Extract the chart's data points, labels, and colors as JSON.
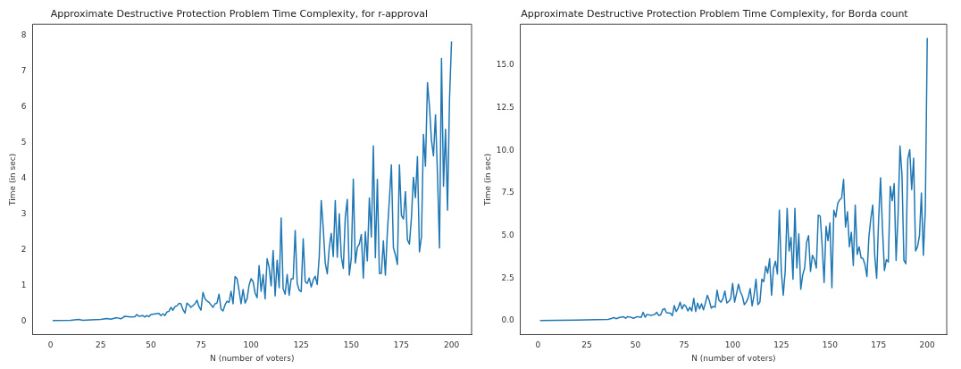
{
  "chart_data": [
    {
      "type": "line",
      "title": "Approximate Destructive Protection Problem Time Complexity, for r-approval",
      "xlabel": "N (number of voters)",
      "ylabel": "Time (in sec)",
      "xlim": [
        -9,
        210
      ],
      "ylim": [
        -0.38,
        8.3
      ],
      "xticks": [
        0,
        25,
        50,
        75,
        100,
        125,
        150,
        175,
        200
      ],
      "yticks": [
        0,
        1,
        2,
        3,
        4,
        5,
        6,
        7,
        8
      ],
      "grid": false,
      "legend": false,
      "marker": "none",
      "line_style": "solid",
      "series": [
        {
          "color": "#1f77b4",
          "x": [
            1,
            10,
            14,
            16,
            20,
            25,
            28,
            30,
            33,
            35,
            37,
            40,
            42,
            43,
            44,
            46,
            47,
            48,
            49,
            50,
            54,
            55,
            56,
            57,
            58,
            59,
            60,
            61,
            62,
            63,
            64,
            65,
            66,
            67,
            68,
            69,
            70,
            72,
            73,
            74,
            75,
            76,
            77,
            78,
            79,
            81,
            82,
            83,
            84,
            85,
            86,
            87,
            88,
            89,
            90,
            91,
            92,
            93,
            94,
            95,
            96,
            97,
            98,
            99,
            100,
            101,
            102,
            103,
            104,
            105,
            106,
            107,
            108,
            109,
            110,
            111,
            112,
            113,
            114,
            115,
            116,
            117,
            118,
            119,
            120,
            121,
            122,
            123,
            124,
            125,
            126,
            127,
            128,
            129,
            130,
            131,
            132,
            133,
            134,
            135,
            136,
            137,
            138,
            139,
            140,
            141,
            142,
            143,
            144,
            145,
            146,
            147,
            148,
            149,
            150,
            151,
            152,
            153,
            154,
            155,
            156,
            157,
            158,
            159,
            160,
            161,
            162,
            163,
            164,
            165,
            166,
            167,
            168,
            169,
            170,
            171,
            172,
            173,
            174,
            175,
            176,
            177,
            178,
            179,
            180,
            181,
            182,
            183,
            184,
            185,
            186,
            187,
            188,
            189,
            190,
            191,
            192,
            193,
            194,
            195,
            196,
            197,
            198,
            199,
            200
          ],
          "values": [
            0.01,
            0.02,
            0.04,
            0.02,
            0.03,
            0.04,
            0.07,
            0.05,
            0.09,
            0.06,
            0.13,
            0.11,
            0.12,
            0.18,
            0.13,
            0.15,
            0.11,
            0.15,
            0.12,
            0.18,
            0.21,
            0.15,
            0.2,
            0.15,
            0.25,
            0.27,
            0.38,
            0.3,
            0.4,
            0.42,
            0.49,
            0.48,
            0.32,
            0.22,
            0.5,
            0.45,
            0.38,
            0.48,
            0.58,
            0.4,
            0.3,
            0.8,
            0.62,
            0.56,
            0.52,
            0.38,
            0.48,
            0.5,
            0.75,
            0.33,
            0.28,
            0.45,
            0.55,
            0.52,
            0.83,
            0.48,
            1.24,
            1.18,
            0.85,
            0.48,
            0.88,
            0.5,
            0.62,
            1.0,
            1.18,
            1.1,
            0.78,
            0.65,
            1.55,
            0.83,
            1.3,
            0.62,
            1.74,
            1.5,
            0.98,
            1.97,
            0.7,
            1.7,
            0.93,
            2.88,
            0.9,
            0.75,
            1.3,
            0.72,
            1.18,
            1.18,
            2.53,
            1.05,
            0.86,
            0.82,
            2.3,
            1.1,
            1.05,
            1.2,
            0.95,
            1.15,
            1.25,
            1.02,
            1.8,
            3.37,
            2.6,
            1.62,
            1.32,
            2.05,
            2.45,
            1.8,
            3.37,
            1.78,
            3.0,
            1.8,
            1.47,
            2.9,
            3.4,
            1.28,
            1.75,
            3.97,
            1.62,
            2.05,
            2.15,
            2.42,
            1.2,
            2.5,
            1.68,
            3.44,
            2.35,
            4.9,
            1.77,
            3.96,
            1.33,
            1.33,
            2.24,
            1.28,
            2.5,
            3.4,
            4.37,
            2.05,
            1.85,
            1.58,
            4.37,
            2.95,
            2.85,
            3.62,
            2.27,
            2.15,
            2.9,
            4.02,
            3.45,
            4.6,
            1.93,
            2.35,
            5.22,
            4.33,
            6.67,
            6.0,
            5.05,
            4.62,
            5.77,
            4.1,
            2.04,
            7.34,
            3.77,
            5.36,
            3.1,
            6.2,
            7.82
          ]
        }
      ]
    },
    {
      "type": "line",
      "title": "Approximate Destructive Protection Problem Time Complexity, for Borda count",
      "xlabel": "N (number of voters)",
      "ylabel": "Time (in sec)",
      "xlim": [
        -9,
        210
      ],
      "ylim": [
        -0.8,
        17.4
      ],
      "xticks": [
        0,
        25,
        50,
        75,
        100,
        125,
        150,
        175,
        200
      ],
      "yticks": [
        {
          "value": 0,
          "label": "0.0"
        },
        {
          "value": 2.5,
          "label": "2.5"
        },
        {
          "value": 5,
          "label": "5.0"
        },
        {
          "value": 7.5,
          "label": "7.5"
        },
        {
          "value": 10,
          "label": "10.0"
        },
        {
          "value": 12.5,
          "label": "12.5"
        },
        {
          "value": 15,
          "label": "15.0"
        }
      ],
      "grid": false,
      "legend": false,
      "marker": "none",
      "line_style": "solid",
      "series": [
        {
          "color": "#1f77b4",
          "x": [
            1,
            20,
            30,
            36,
            38,
            39,
            40,
            42,
            44,
            45,
            46,
            48,
            49,
            51,
            53,
            54,
            55,
            56,
            58,
            60,
            61,
            62,
            63,
            64,
            65,
            66,
            68,
            69,
            70,
            71,
            72,
            73,
            74,
            75,
            76,
            77,
            78,
            79,
            80,
            81,
            82,
            83,
            84,
            85,
            86,
            87,
            88,
            89,
            90,
            91,
            92,
            93,
            94,
            95,
            96,
            97,
            98,
            99,
            100,
            101,
            102,
            103,
            104,
            105,
            106,
            107,
            108,
            109,
            110,
            111,
            112,
            113,
            114,
            115,
            116,
            117,
            118,
            119,
            120,
            121,
            122,
            123,
            124,
            125,
            126,
            127,
            128,
            129,
            130,
            131,
            132,
            133,
            134,
            135,
            136,
            137,
            138,
            139,
            140,
            141,
            142,
            143,
            144,
            145,
            146,
            147,
            148,
            149,
            150,
            151,
            152,
            153,
            154,
            155,
            156,
            157,
            158,
            159,
            160,
            161,
            162,
            163,
            164,
            165,
            166,
            167,
            168,
            169,
            170,
            171,
            172,
            173,
            174,
            175,
            176,
            177,
            178,
            179,
            180,
            181,
            182,
            183,
            184,
            185,
            186,
            187,
            188,
            189,
            190,
            191,
            192,
            193,
            194,
            195,
            196,
            197,
            198,
            199,
            200
          ],
          "values": [
            0.02,
            0.05,
            0.07,
            0.09,
            0.15,
            0.2,
            0.13,
            0.2,
            0.24,
            0.15,
            0.25,
            0.2,
            0.15,
            0.25,
            0.2,
            0.5,
            0.22,
            0.38,
            0.32,
            0.38,
            0.5,
            0.32,
            0.35,
            0.65,
            0.72,
            0.48,
            0.45,
            0.3,
            0.9,
            0.55,
            0.75,
            1.1,
            0.7,
            0.95,
            0.85,
            0.58,
            0.8,
            0.58,
            1.32,
            0.55,
            1.05,
            0.7,
            1.0,
            0.65,
            1.05,
            1.5,
            1.2,
            0.75,
            0.85,
            0.8,
            1.8,
            1.2,
            1.1,
            1.3,
            1.75,
            1.05,
            1.15,
            1.3,
            2.2,
            1.1,
            1.6,
            2.15,
            1.7,
            1.45,
            0.95,
            1.1,
            1.35,
            1.9,
            0.88,
            1.5,
            2.45,
            0.95,
            1.1,
            2.45,
            2.3,
            3.2,
            2.8,
            3.65,
            1.5,
            3.1,
            3.5,
            2.75,
            6.5,
            2.95,
            1.5,
            2.9,
            6.6,
            4.1,
            4.9,
            2.45,
            6.6,
            3.1,
            5.1,
            1.85,
            2.7,
            3.1,
            4.6,
            5.0,
            2.9,
            3.85,
            3.6,
            3.1,
            6.2,
            6.15,
            4.4,
            2.25,
            5.55,
            4.7,
            5.75,
            1.95,
            6.5,
            6.1,
            6.9,
            7.1,
            7.2,
            8.3,
            5.5,
            6.4,
            4.35,
            5.2,
            3.25,
            6.8,
            3.9,
            4.35,
            3.7,
            3.65,
            3.3,
            2.6,
            4.9,
            6.0,
            6.8,
            3.85,
            2.5,
            5.9,
            8.4,
            5.4,
            2.95,
            3.6,
            3.45,
            7.9,
            7.05,
            8.05,
            3.55,
            6.2,
            10.25,
            8.6,
            3.55,
            3.35,
            9.5,
            10.05,
            7.7,
            9.55,
            4.1,
            4.35,
            5.0,
            7.5,
            3.85,
            6.5,
            16.6
          ]
        }
      ]
    }
  ]
}
